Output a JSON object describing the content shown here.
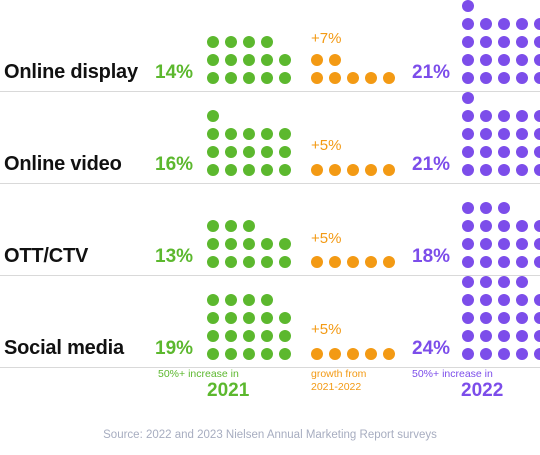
{
  "chart_data": {
    "type": "dot-matrix",
    "unit_note": "",
    "categories": [
      "Online display",
      "Online video",
      "OTT/CTV",
      "Social media"
    ],
    "series": [
      {
        "name": "2021",
        "values": [
          14,
          16,
          13,
          19
        ],
        "labels": [
          "14%",
          "16%",
          "13%",
          "19%"
        ]
      },
      {
        "name": "growth",
        "values": [
          7,
          5,
          5,
          5
        ],
        "labels": [
          "+7%",
          "+5%",
          "+5%",
          "+5%"
        ]
      },
      {
        "name": "2022",
        "values": [
          21,
          21,
          18,
          24
        ],
        "labels": [
          "21%",
          "21%",
          "18%",
          "24%"
        ]
      }
    ]
  },
  "colors": {
    "y2021": "#5cb82e",
    "growth": "#f39a14",
    "y2022": "#7c4dea",
    "source": "#a7adc0"
  },
  "footer": {
    "left_note": "50%+ increase in",
    "left_year": "2021",
    "mid_note_1": "growth from",
    "mid_note_2": "2021-2022",
    "right_note": "50%+ increase in",
    "right_year": "2022"
  },
  "source": "Source: 2022 and 2023 Nielsen Annual Marketing Report surveys"
}
